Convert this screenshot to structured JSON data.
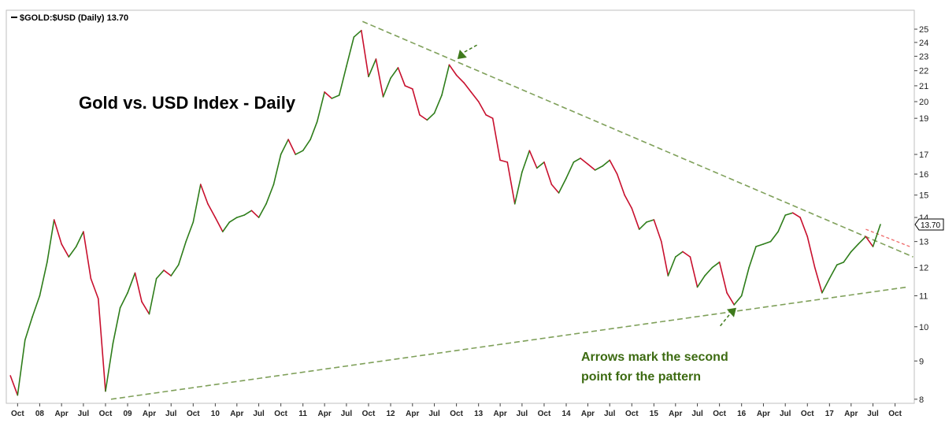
{
  "legend": "$GOLD:$USD (Daily) 13.70",
  "title": "Gold vs. USD Index - Daily",
  "annotation": [
    "Arrows mark the second",
    "point for the pattern"
  ],
  "colors": {
    "up": "#2e7d1a",
    "down": "#c8102e",
    "trendline": "#7fa05a",
    "short_trendline": "#ef6a6a",
    "arrow": "#3f7a1c",
    "annotation": "#3d6b12",
    "plot_border": "#bfbfbf",
    "background": "#ffffff"
  },
  "chart_data": {
    "type": "line",
    "series": [
      {
        "name": "$GOLD:$USD",
        "last_value": "13.70",
        "points": [
          [
            "2007-09-01",
            8.6
          ],
          [
            "2007-10-01",
            8.1
          ],
          [
            "2007-11-01",
            9.6
          ],
          [
            "2007-12-01",
            10.3
          ],
          [
            "2008-01-01",
            11.0
          ],
          [
            "2008-02-01",
            12.2
          ],
          [
            "2008-03-01",
            13.9
          ],
          [
            "2008-04-01",
            12.9
          ],
          [
            "2008-05-01",
            12.4
          ],
          [
            "2008-06-01",
            12.8
          ],
          [
            "2008-07-01",
            13.4
          ],
          [
            "2008-08-01",
            11.6
          ],
          [
            "2008-09-01",
            10.9
          ],
          [
            "2008-10-01",
            8.2
          ],
          [
            "2008-11-01",
            9.5
          ],
          [
            "2008-12-01",
            10.6
          ],
          [
            "2009-01-01",
            11.1
          ],
          [
            "2009-02-01",
            11.8
          ],
          [
            "2009-03-01",
            10.8
          ],
          [
            "2009-04-01",
            10.4
          ],
          [
            "2009-05-01",
            11.6
          ],
          [
            "2009-06-01",
            11.9
          ],
          [
            "2009-07-01",
            11.7
          ],
          [
            "2009-08-01",
            12.1
          ],
          [
            "2009-09-01",
            13.0
          ],
          [
            "2009-10-01",
            13.8
          ],
          [
            "2009-11-01",
            15.5
          ],
          [
            "2009-12-01",
            14.6
          ],
          [
            "2010-01-01",
            14.0
          ],
          [
            "2010-02-01",
            13.4
          ],
          [
            "2010-03-01",
            13.8
          ],
          [
            "2010-04-01",
            14.0
          ],
          [
            "2010-05-01",
            14.1
          ],
          [
            "2010-06-01",
            14.3
          ],
          [
            "2010-07-01",
            14.0
          ],
          [
            "2010-08-01",
            14.6
          ],
          [
            "2010-09-01",
            15.5
          ],
          [
            "2010-10-01",
            17.0
          ],
          [
            "2010-11-01",
            17.8
          ],
          [
            "2010-12-01",
            17.0
          ],
          [
            "2011-01-01",
            17.2
          ],
          [
            "2011-02-01",
            17.8
          ],
          [
            "2011-03-01",
            18.8
          ],
          [
            "2011-04-01",
            20.6
          ],
          [
            "2011-05-01",
            20.2
          ],
          [
            "2011-06-01",
            20.4
          ],
          [
            "2011-07-01",
            22.3
          ],
          [
            "2011-08-01",
            24.4
          ],
          [
            "2011-09-01",
            24.9
          ],
          [
            "2011-10-01",
            21.6
          ],
          [
            "2011-11-01",
            22.8
          ],
          [
            "2011-12-01",
            20.3
          ],
          [
            "2012-01-01",
            21.5
          ],
          [
            "2012-02-01",
            22.2
          ],
          [
            "2012-03-01",
            21.0
          ],
          [
            "2012-04-01",
            20.8
          ],
          [
            "2012-05-01",
            19.2
          ],
          [
            "2012-06-01",
            18.9
          ],
          [
            "2012-07-01",
            19.3
          ],
          [
            "2012-08-01",
            20.4
          ],
          [
            "2012-09-01",
            22.4
          ],
          [
            "2012-10-01",
            21.7
          ],
          [
            "2012-11-01",
            21.2
          ],
          [
            "2012-12-01",
            20.6
          ],
          [
            "2013-01-01",
            20.0
          ],
          [
            "2013-02-01",
            19.2
          ],
          [
            "2013-03-01",
            19.0
          ],
          [
            "2013-04-01",
            16.7
          ],
          [
            "2013-05-01",
            16.6
          ],
          [
            "2013-06-01",
            14.6
          ],
          [
            "2013-07-01",
            16.1
          ],
          [
            "2013-08-01",
            17.2
          ],
          [
            "2013-09-01",
            16.3
          ],
          [
            "2013-10-01",
            16.6
          ],
          [
            "2013-11-01",
            15.5
          ],
          [
            "2013-12-01",
            15.1
          ],
          [
            "2014-01-01",
            15.8
          ],
          [
            "2014-02-01",
            16.6
          ],
          [
            "2014-03-01",
            16.8
          ],
          [
            "2014-04-01",
            16.5
          ],
          [
            "2014-05-01",
            16.2
          ],
          [
            "2014-06-01",
            16.4
          ],
          [
            "2014-07-01",
            16.7
          ],
          [
            "2014-08-01",
            16.0
          ],
          [
            "2014-09-01",
            15.0
          ],
          [
            "2014-10-01",
            14.4
          ],
          [
            "2014-11-01",
            13.5
          ],
          [
            "2014-12-01",
            13.8
          ],
          [
            "2015-01-01",
            13.9
          ],
          [
            "2015-02-01",
            13.0
          ],
          [
            "2015-03-01",
            11.7
          ],
          [
            "2015-04-01",
            12.4
          ],
          [
            "2015-05-01",
            12.6
          ],
          [
            "2015-06-01",
            12.4
          ],
          [
            "2015-07-01",
            11.3
          ],
          [
            "2015-08-01",
            11.7
          ],
          [
            "2015-09-01",
            12.0
          ],
          [
            "2015-10-01",
            12.2
          ],
          [
            "2015-11-01",
            11.1
          ],
          [
            "2015-12-01",
            10.7
          ],
          [
            "2016-01-01",
            11.0
          ],
          [
            "2016-02-01",
            12.0
          ],
          [
            "2016-03-01",
            12.8
          ],
          [
            "2016-04-01",
            12.9
          ],
          [
            "2016-05-01",
            13.0
          ],
          [
            "2016-06-01",
            13.4
          ],
          [
            "2016-07-01",
            14.1
          ],
          [
            "2016-08-01",
            14.2
          ],
          [
            "2016-09-01",
            14.0
          ],
          [
            "2016-10-01",
            13.2
          ],
          [
            "2016-11-01",
            12.0
          ],
          [
            "2016-12-01",
            11.1
          ],
          [
            "2017-01-01",
            11.6
          ],
          [
            "2017-02-01",
            12.1
          ],
          [
            "2017-03-01",
            12.2
          ],
          [
            "2017-04-01",
            12.6
          ],
          [
            "2017-05-01",
            12.9
          ],
          [
            "2017-06-01",
            13.2
          ],
          [
            "2017-07-01",
            12.8
          ],
          [
            "2017-08-01",
            13.7
          ]
        ]
      }
    ],
    "y_ticks": [
      "8",
      "9",
      "10",
      "11",
      "12",
      "13",
      "14",
      "15",
      "16",
      "17",
      "19",
      "20",
      "21",
      "22",
      "23",
      "24",
      "25"
    ],
    "x_ticks": [
      [
        "2007-10-01",
        "Oct"
      ],
      [
        "2008-01-01",
        "08"
      ],
      [
        "2008-04-01",
        "Apr"
      ],
      [
        "2008-07-01",
        "Jul"
      ],
      [
        "2008-10-01",
        "Oct"
      ],
      [
        "2009-01-01",
        "09"
      ],
      [
        "2009-04-01",
        "Apr"
      ],
      [
        "2009-07-01",
        "Jul"
      ],
      [
        "2009-10-01",
        "Oct"
      ],
      [
        "2010-01-01",
        "10"
      ],
      [
        "2010-04-01",
        "Apr"
      ],
      [
        "2010-07-01",
        "Jul"
      ],
      [
        "2010-10-01",
        "Oct"
      ],
      [
        "2011-01-01",
        "11"
      ],
      [
        "2011-04-01",
        "Apr"
      ],
      [
        "2011-07-01",
        "Jul"
      ],
      [
        "2011-10-01",
        "Oct"
      ],
      [
        "2012-01-01",
        "12"
      ],
      [
        "2012-04-01",
        "Apr"
      ],
      [
        "2012-07-01",
        "Jul"
      ],
      [
        "2012-10-01",
        "Oct"
      ],
      [
        "2013-01-01",
        "13"
      ],
      [
        "2013-04-01",
        "Apr"
      ],
      [
        "2013-07-01",
        "Jul"
      ],
      [
        "2013-10-01",
        "Oct"
      ],
      [
        "2014-01-01",
        "14"
      ],
      [
        "2014-04-01",
        "Apr"
      ],
      [
        "2014-07-01",
        "Jul"
      ],
      [
        "2014-10-01",
        "Oct"
      ],
      [
        "2015-01-01",
        "15"
      ],
      [
        "2015-04-01",
        "Apr"
      ],
      [
        "2015-07-01",
        "Jul"
      ],
      [
        "2015-10-01",
        "Oct"
      ],
      [
        "2016-01-01",
        "16"
      ],
      [
        "2016-04-01",
        "Apr"
      ],
      [
        "2016-07-01",
        "Jul"
      ],
      [
        "2016-10-01",
        "Oct"
      ],
      [
        "2017-01-01",
        "17"
      ],
      [
        "2017-04-01",
        "Apr"
      ],
      [
        "2017-07-01",
        "Jul"
      ],
      [
        "2017-10-01",
        "Oct"
      ]
    ],
    "y_scale": "log",
    "ylim": [
      7.9,
      26.5
    ],
    "xlim": [
      "2007-08-15",
      "2017-12-20"
    ],
    "grid": false,
    "trendlines": [
      {
        "name": "upper",
        "from": [
          "2011-09-06",
          25.6
        ],
        "to": [
          "2017-12-15",
          12.4
        ],
        "style": "dashed"
      },
      {
        "name": "lower",
        "from": [
          "2008-10-24",
          8.0
        ],
        "to": [
          "2017-11-20",
          11.3
        ],
        "style": "dashed"
      },
      {
        "name": "short",
        "from": [
          "2017-06-01",
          13.5
        ],
        "to": [
          "2017-12-01",
          12.8
        ],
        "style": "dashed"
      }
    ],
    "arrows": [
      {
        "at": [
          "2012-10-05",
          22.8
        ],
        "direction": "down-left"
      },
      {
        "at": [
          "2015-12-10",
          10.6
        ],
        "direction": "up-right"
      }
    ]
  }
}
